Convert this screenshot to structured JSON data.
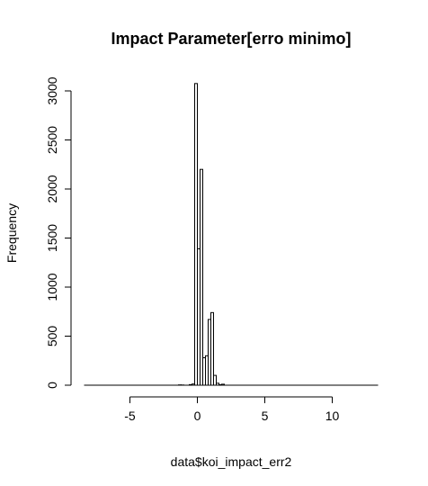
{
  "chart_data": {
    "type": "bar",
    "subtype": "histogram",
    "title": "Impact Parameter[erro minimo]",
    "xlabel": "data$koi_impact_err2",
    "ylabel": "Frequency",
    "xlim": [
      -8.5,
      13.5
    ],
    "ylim": [
      0,
      3100
    ],
    "x_ticks": [
      -5,
      0,
      5,
      10
    ],
    "y_ticks": [
      0,
      500,
      1000,
      1500,
      2000,
      2500,
      3000
    ],
    "x_tick_labels": [
      "-5",
      "0",
      "5",
      "10"
    ],
    "y_tick_labels": [
      "0",
      "500",
      "1000",
      "1500",
      "2000",
      "2500",
      "3000"
    ],
    "grid": false,
    "bin_width": 0.2,
    "bin_range": [
      -8.4,
      13.4
    ],
    "bins": [
      {
        "x0": -1.4,
        "x1": -1.2,
        "count": 3
      },
      {
        "x0": -1.2,
        "x1": -1.0,
        "count": 2
      },
      {
        "x0": -0.6,
        "x1": -0.4,
        "count": 6
      },
      {
        "x0": -0.4,
        "x1": -0.2,
        "count": 12
      },
      {
        "x0": -0.2,
        "x1": 0.0,
        "count": 3075
      },
      {
        "x0": 0.0,
        "x1": 0.2,
        "count": 1390
      },
      {
        "x0": 0.2,
        "x1": 0.4,
        "count": 2200
      },
      {
        "x0": 0.4,
        "x1": 0.6,
        "count": 280
      },
      {
        "x0": 0.6,
        "x1": 0.8,
        "count": 300
      },
      {
        "x0": 0.8,
        "x1": 1.0,
        "count": 670
      },
      {
        "x0": 1.0,
        "x1": 1.2,
        "count": 740
      },
      {
        "x0": 1.2,
        "x1": 1.4,
        "count": 100
      },
      {
        "x0": 1.4,
        "x1": 1.6,
        "count": 20
      },
      {
        "x0": 1.6,
        "x1": 1.8,
        "count": 5
      },
      {
        "x0": 1.8,
        "x1": 2.0,
        "count": 10
      }
    ],
    "bar_fill": "#ffffff",
    "bar_stroke": "#000000"
  }
}
